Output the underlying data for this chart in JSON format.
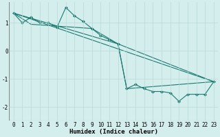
{
  "xlabel": "Humidex (Indice chaleur)",
  "ylabel": "",
  "background_color": "#d4eeee",
  "line_color": "#1a7a6e",
  "grid_color": "#b8d8d8",
  "xlim": [
    -0.5,
    23.5
  ],
  "ylim": [
    -2.5,
    1.75
  ],
  "yticks": [
    -2,
    -1,
    0,
    1
  ],
  "xticks": [
    0,
    1,
    2,
    3,
    4,
    5,
    6,
    7,
    8,
    9,
    10,
    11,
    12,
    13,
    14,
    15,
    16,
    17,
    18,
    19,
    20,
    21,
    22,
    23
  ],
  "series": [
    {
      "x": [
        0,
        1,
        2,
        3,
        4,
        5,
        6,
        7,
        8,
        9,
        10,
        11,
        12,
        13,
        14,
        15,
        16,
        17,
        18,
        19,
        20,
        21,
        22,
        23
      ],
      "y": [
        1.35,
        1.0,
        1.2,
        1.0,
        1.0,
        0.85,
        1.55,
        1.25,
        1.05,
        0.8,
        0.55,
        0.4,
        0.25,
        -1.35,
        -1.2,
        -1.35,
        -1.45,
        -1.45,
        -1.5,
        -1.8,
        -1.55,
        -1.55,
        -1.55,
        -1.1
      ],
      "has_markers": true
    },
    {
      "x": [
        0,
        2,
        9,
        12,
        23
      ],
      "y": [
        1.35,
        0.95,
        0.8,
        0.25,
        -1.1
      ],
      "has_markers": false
    },
    {
      "x": [
        0,
        12,
        13,
        23
      ],
      "y": [
        1.35,
        0.25,
        -1.35,
        -1.1
      ],
      "has_markers": false
    },
    {
      "x": [
        0,
        23
      ],
      "y": [
        1.35,
        -1.1
      ],
      "has_markers": false
    }
  ],
  "figsize": [
    3.2,
    2.0
  ],
  "dpi": 100,
  "marker": "D",
  "markersize": 2.0,
  "linewidth": 0.8,
  "tick_fontsize": 5.5,
  "xlabel_fontsize": 6.5
}
